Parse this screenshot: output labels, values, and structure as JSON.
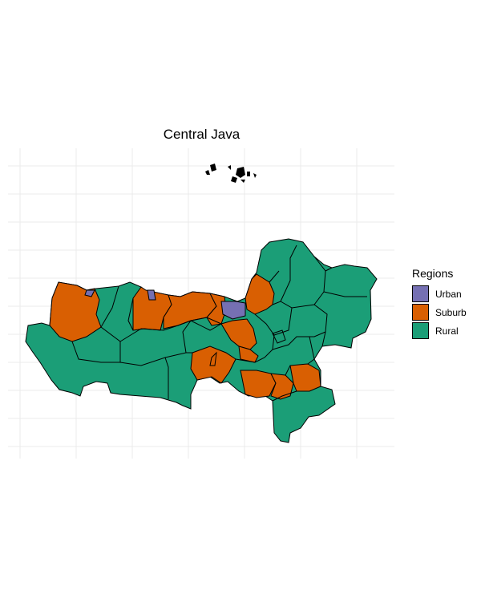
{
  "title": "Central Java",
  "legend": {
    "title": "Regions",
    "items": [
      {
        "label": "Urban",
        "color": "#7570b3"
      },
      {
        "label": "Suburb",
        "color": "#d95f02"
      },
      {
        "label": "Rural",
        "color": "#1b9e77"
      }
    ]
  },
  "chart_data": {
    "type": "choropleth",
    "title": "Central Java",
    "legend_title": "Regions",
    "categories": [
      "Urban",
      "Suburb",
      "Rural"
    ],
    "colors": {
      "Urban": "#7570b3",
      "Suburb": "#d95f02",
      "Rural": "#1b9e77"
    },
    "grid": true,
    "legend_position": "right"
  }
}
